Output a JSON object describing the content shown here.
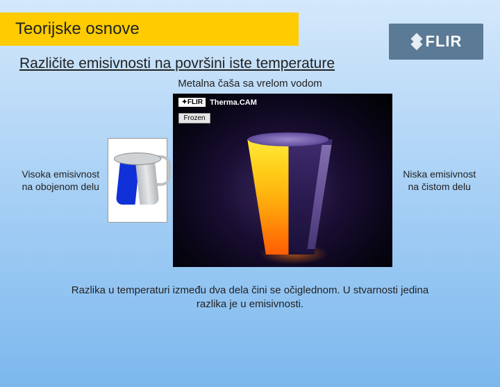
{
  "brand": {
    "name": "FLIR"
  },
  "title": "Teorijske osnove",
  "subtitle": "Različite emisivnosti na površini iste temperature",
  "caption": "Metalna čaša sa vrelom vodom",
  "labels": {
    "left": "Visoka emisivnost na obojenom delu",
    "right": "Niska emisivnost na čistom delu"
  },
  "thermal": {
    "logo_prefix": "✦FLIR",
    "product": "Therma.CAM",
    "frozen": "Frozen"
  },
  "footer": "Razlika u temperaturi između dva dela čini se očiglednom. U stvarnosti jedina razlika je u emisivnosti."
}
